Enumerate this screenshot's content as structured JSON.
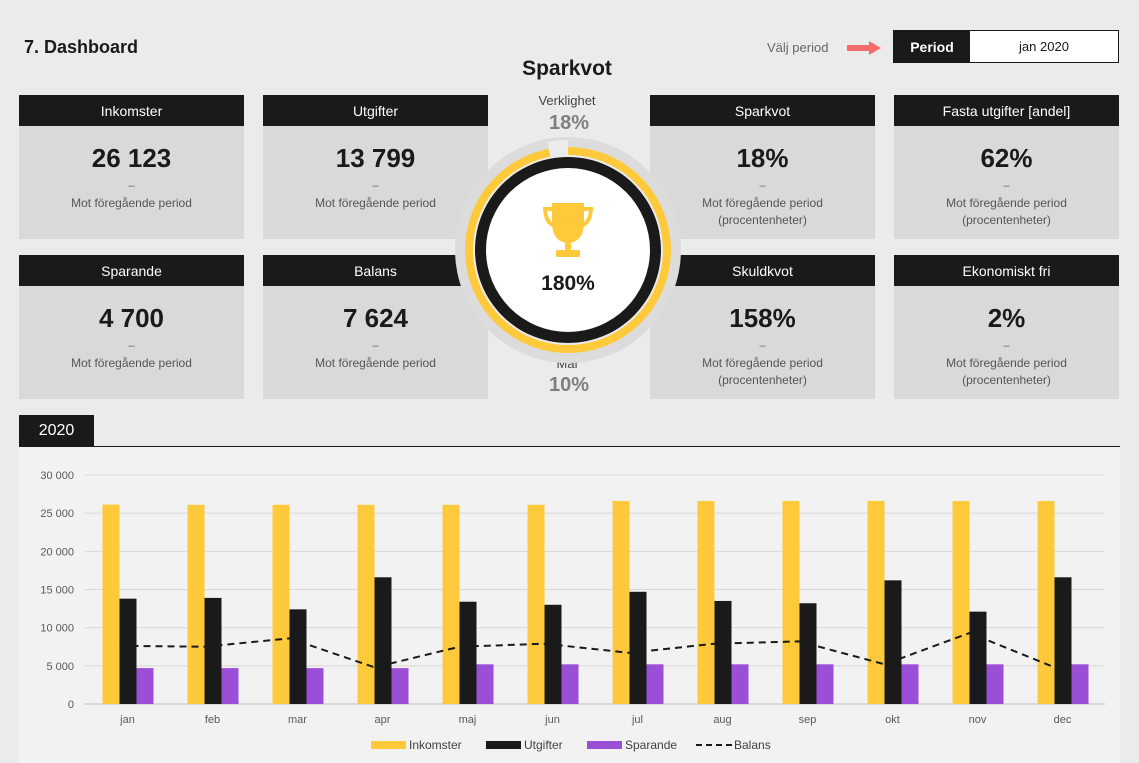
{
  "header": {
    "title": "7. Dashboard",
    "select_label": "Välj period",
    "period_label": "Period",
    "period_value": "jan 2020"
  },
  "cards": [
    {
      "title": "Inkomster",
      "value": "26 123",
      "dash": "–",
      "sub1": "Mot föregående period",
      "sub2": ""
    },
    {
      "title": "Utgifter",
      "value": "13 799",
      "dash": "–",
      "sub1": "Mot föregående period",
      "sub2": ""
    },
    {
      "title": "Sparkvot",
      "value": "18%",
      "dash": "–",
      "sub1": "Mot föregående period",
      "sub2": "(procentenheter)"
    },
    {
      "title": "Fasta utgifter [andel]",
      "value": "62%",
      "dash": "–",
      "sub1": "Mot föregående period",
      "sub2": "(procentenheter)"
    },
    {
      "title": "Sparande",
      "value": "4 700",
      "dash": "–",
      "sub1": "Mot föregående period",
      "sub2": ""
    },
    {
      "title": "Balans",
      "value": "7 624",
      "dash": "–",
      "sub1": "Mot föregående period",
      "sub2": ""
    },
    {
      "title": "Skuldkvot",
      "value": "158%",
      "dash": "–",
      "sub1": "Mot föregående period",
      "sub2": "(procentenheter)"
    },
    {
      "title": "Ekonomiskt fri",
      "value": "2%",
      "dash": "–",
      "sub1": "Mot föregående period",
      "sub2": "(procentenheter)"
    }
  ],
  "center": {
    "title": "Sparkvot",
    "actual_label": "Verklighet",
    "actual_value": "18%",
    "goal_label": "Mål",
    "goal_value": "10%",
    "ratio_text": "180%",
    "ring_fill_fraction": 0.97,
    "ring_color": "#ffc93c",
    "dark_color": "#1a1a1a",
    "icon": "trophy-icon"
  },
  "year_tab": "2020",
  "colors": {
    "income": "#ffc93c",
    "expense": "#1a1a1a",
    "saving": "#9b4fd6",
    "balance": "#1a1a1a",
    "arrow": "#f26c6c"
  },
  "chart_data": {
    "type": "bar",
    "categories": [
      "jan",
      "feb",
      "mar",
      "apr",
      "maj",
      "jun",
      "jul",
      "aug",
      "sep",
      "okt",
      "nov",
      "dec"
    ],
    "series": [
      {
        "name": "Inkomster",
        "kind": "bar",
        "values": [
          26123,
          26100,
          26100,
          26100,
          26100,
          26100,
          26600,
          26600,
          26600,
          26600,
          26600,
          26600
        ]
      },
      {
        "name": "Utgifter",
        "kind": "bar",
        "values": [
          13799,
          13900,
          12400,
          16600,
          13400,
          13000,
          14700,
          13500,
          13200,
          16200,
          12100,
          16600
        ]
      },
      {
        "name": "Sparande",
        "kind": "bar",
        "values": [
          4700,
          4700,
          4700,
          4700,
          5200,
          5200,
          5200,
          5200,
          5200,
          5200,
          5200,
          5200
        ]
      },
      {
        "name": "Balans",
        "kind": "line",
        "values": [
          7624,
          7500,
          8600,
          4800,
          7500,
          7900,
          6700,
          7900,
          8200,
          5200,
          9300,
          4800
        ]
      }
    ],
    "ylim": [
      0,
      30000
    ],
    "yticks": [
      0,
      5000,
      10000,
      15000,
      20000,
      25000,
      30000
    ],
    "ytick_labels": [
      "0",
      "5 000",
      "10 000",
      "15 000",
      "20 000",
      "25 000",
      "30 000"
    ],
    "legend_position": "bottom",
    "grid": true,
    "title": "",
    "xlabel": "",
    "ylabel": ""
  }
}
